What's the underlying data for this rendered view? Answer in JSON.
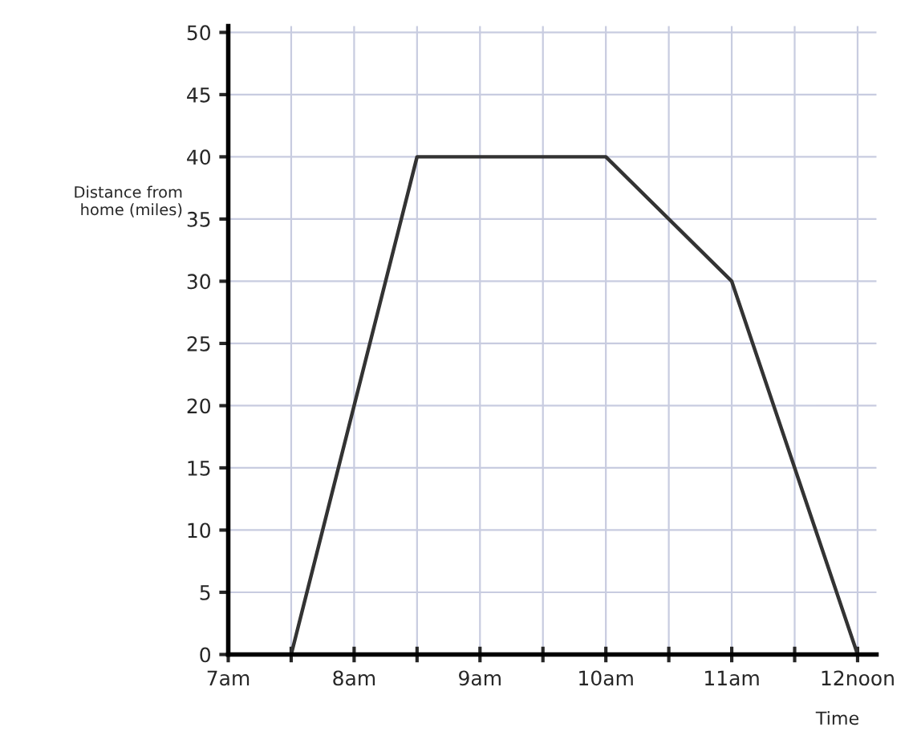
{
  "chart_data": {
    "type": "line",
    "xlabel": "Time",
    "ylabel": "Distance from\nhome (miles)",
    "x": [
      7.5,
      8.5,
      10,
      11,
      12
    ],
    "series": [
      {
        "color": "#333333",
        "values": [
          0,
          40,
          40,
          30,
          0
        ]
      }
    ],
    "xlim": [
      7,
      12.15
    ],
    "ylim": [
      0,
      50.5
    ],
    "xticks": [
      {
        "value": 7,
        "label": "7am"
      },
      {
        "value": 7.5,
        "label": null
      },
      {
        "value": 8,
        "label": "8am"
      },
      {
        "value": 8.5,
        "label": null
      },
      {
        "value": 9,
        "label": "9am"
      },
      {
        "value": 9.5,
        "label": null
      },
      {
        "value": 10,
        "label": "10am"
      },
      {
        "value": 10.5,
        "label": null
      },
      {
        "value": 11,
        "label": "11am"
      },
      {
        "value": 11.5,
        "label": null
      },
      {
        "value": 12,
        "label": "12noon"
      }
    ],
    "yticks": [
      0,
      5,
      10,
      15,
      20,
      25,
      30,
      35,
      40,
      45,
      50
    ],
    "grid": true,
    "marker": "none",
    "line_style": "solid"
  }
}
